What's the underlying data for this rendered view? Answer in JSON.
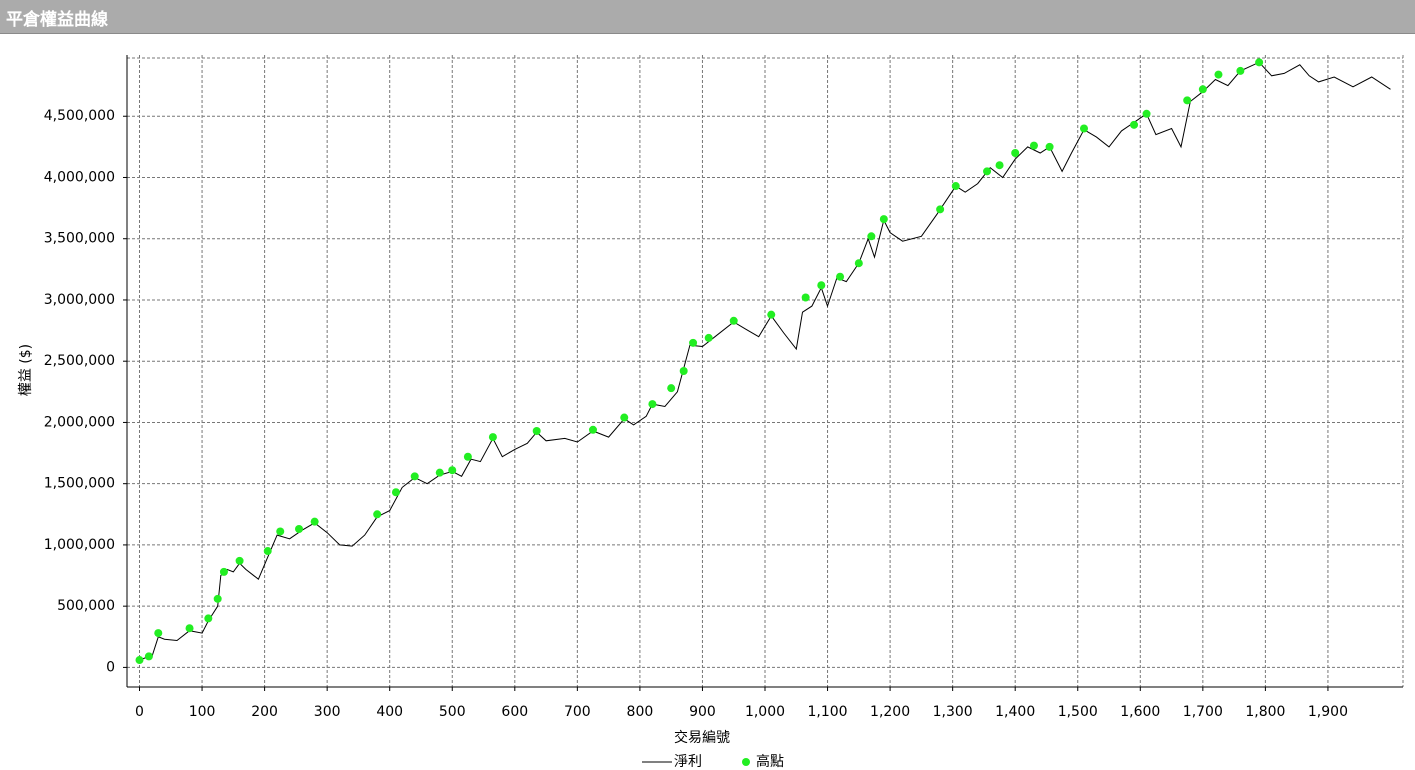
{
  "window_title": "平倉權益曲線",
  "chart_data": {
    "type": "line",
    "x_label": "交易編號",
    "y_label": "權益 ($)",
    "xlim": [
      -20,
      2020
    ],
    "ylim": [
      -160000,
      5000000
    ],
    "xticks": [
      0,
      100,
      200,
      300,
      400,
      500,
      600,
      700,
      800,
      900,
      {
        "value": 1000,
        "label": "1,000"
      },
      {
        "value": 1100,
        "label": "1,100"
      },
      {
        "value": 1200,
        "label": "1,200"
      },
      {
        "value": 1300,
        "label": "1,300"
      },
      {
        "value": 1400,
        "label": "1,400"
      },
      {
        "value": 1500,
        "label": "1,500"
      },
      {
        "value": 1600,
        "label": "1,600"
      },
      {
        "value": 1700,
        "label": "1,700"
      },
      {
        "value": 1800,
        "label": "1,800"
      },
      {
        "value": 1900,
        "label": "1,900"
      }
    ],
    "yticks": [
      0,
      {
        "value": 500000,
        "label": "500,000"
      },
      {
        "value": 1000000,
        "label": "1,000,000"
      },
      {
        "value": 1500000,
        "label": "1,500,000"
      },
      {
        "value": 2000000,
        "label": "2,000,000"
      },
      {
        "value": 2500000,
        "label": "2,500,000"
      },
      {
        "value": 3000000,
        "label": "3,000,000"
      },
      {
        "value": 3500000,
        "label": "3,500,000"
      },
      {
        "value": 4000000,
        "label": "4,000,000"
      },
      {
        "value": 4500000,
        "label": "4,500,000"
      }
    ],
    "grid": true,
    "series": [
      {
        "name": "淨利",
        "color": "#000000",
        "marker": "line",
        "x": [
          0,
          10,
          20,
          30,
          40,
          60,
          80,
          100,
          110,
          125,
          130,
          140,
          150,
          160,
          170,
          190,
          205,
          220,
          240,
          260,
          280,
          300,
          320,
          340,
          360,
          380,
          400,
          420,
          440,
          460,
          480,
          500,
          515,
          530,
          545,
          565,
          580,
          600,
          620,
          635,
          650,
          680,
          700,
          725,
          750,
          775,
          790,
          810,
          820,
          840,
          860,
          880,
          900,
          920,
          950,
          970,
          990,
          1010,
          1030,
          1050,
          1060,
          1075,
          1090,
          1100,
          1115,
          1130,
          1150,
          1165,
          1175,
          1190,
          1200,
          1220,
          1250,
          1275,
          1305,
          1320,
          1340,
          1360,
          1380,
          1400,
          1420,
          1440,
          1455,
          1475,
          1490,
          1510,
          1530,
          1550,
          1570,
          1590,
          1610,
          1625,
          1650,
          1665,
          1680,
          1700,
          1720,
          1740,
          1760,
          1790,
          1810,
          1830,
          1855,
          1870,
          1885,
          1910,
          1940,
          1970,
          2000
        ],
        "values": [
          60000,
          80000,
          90000,
          250000,
          230000,
          220000,
          300000,
          280000,
          380000,
          500000,
          750000,
          800000,
          780000,
          850000,
          800000,
          720000,
          900000,
          1080000,
          1050000,
          1120000,
          1180000,
          1100000,
          1000000,
          990000,
          1080000,
          1230000,
          1280000,
          1470000,
          1550000,
          1500000,
          1570000,
          1600000,
          1560000,
          1700000,
          1680000,
          1870000,
          1720000,
          1780000,
          1830000,
          1920000,
          1850000,
          1870000,
          1840000,
          1930000,
          1880000,
          2030000,
          1980000,
          2050000,
          2150000,
          2130000,
          2250000,
          2630000,
          2620000,
          2700000,
          2820000,
          2760000,
          2700000,
          2870000,
          2730000,
          2600000,
          2900000,
          2950000,
          3100000,
          2950000,
          3180000,
          3150000,
          3300000,
          3500000,
          3350000,
          3650000,
          3550000,
          3480000,
          3520000,
          3700000,
          3930000,
          3880000,
          3950000,
          4080000,
          4000000,
          4150000,
          4250000,
          4200000,
          4250000,
          4050000,
          4200000,
          4390000,
          4330000,
          4250000,
          4380000,
          4450000,
          4520000,
          4350000,
          4400000,
          4250000,
          4620000,
          4700000,
          4800000,
          4750000,
          4870000,
          4940000,
          4830000,
          4850000,
          4920000,
          4830000,
          4780000,
          4820000,
          4740000,
          4820000,
          4720000
        ]
      },
      {
        "name": "高點",
        "color": "#22ee22",
        "marker": "dot",
        "x": [
          0,
          15,
          30,
          80,
          110,
          125,
          135,
          160,
          205,
          225,
          255,
          280,
          380,
          410,
          440,
          480,
          500,
          525,
          565,
          635,
          725,
          775,
          820,
          850,
          870,
          885,
          910,
          950,
          1010,
          1065,
          1090,
          1120,
          1150,
          1170,
          1190,
          1280,
          1305,
          1355,
          1375,
          1400,
          1430,
          1455,
          1510,
          1590,
          1610,
          1675,
          1700,
          1725,
          1760,
          1790
        ],
        "values": [
          60000,
          90000,
          280000,
          320000,
          400000,
          560000,
          780000,
          870000,
          950000,
          1110000,
          1130000,
          1190000,
          1250000,
          1430000,
          1560000,
          1590000,
          1610000,
          1720000,
          1880000,
          1930000,
          1940000,
          2040000,
          2150000,
          2280000,
          2420000,
          2650000,
          2690000,
          2830000,
          2880000,
          3020000,
          3120000,
          3190000,
          3300000,
          3520000,
          3660000,
          3740000,
          3930000,
          4050000,
          4100000,
          4200000,
          4260000,
          4250000,
          4400000,
          4430000,
          4520000,
          4630000,
          4720000,
          4840000,
          4870000,
          4940000
        ]
      }
    ]
  }
}
